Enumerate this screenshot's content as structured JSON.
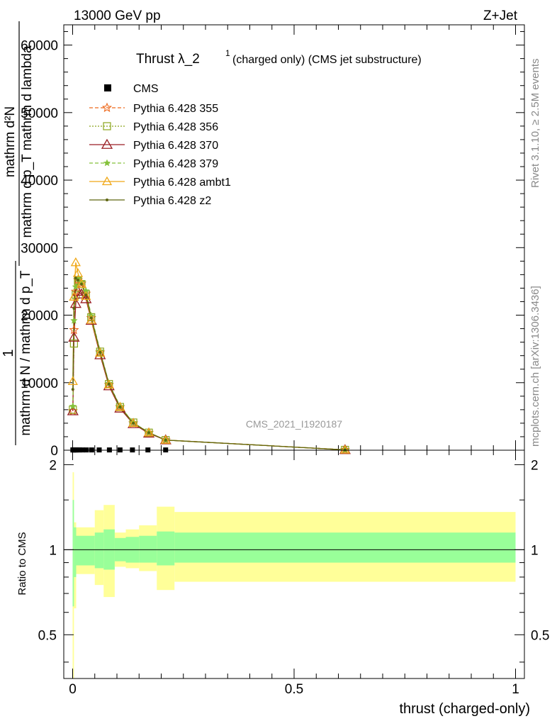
{
  "header": {
    "left": "13000 GeV pp",
    "right": "Z+Jet"
  },
  "side_labels": {
    "rivet": "Rivet 3.1.10, ≥ 2.5M events",
    "mcplots": "mcplots.cern.ch [arXiv:1306.3436]"
  },
  "colors": {
    "cms": "#000000",
    "p355": "#ee6a1e",
    "p356": "#8aa51c",
    "p370": "#9a1f24",
    "p379": "#84c13b",
    "ambt1": "#f0a818",
    "z2": "#5e6611",
    "band_inner": "#99ff99",
    "band_outer": "#ffff99"
  },
  "chart_data": [
    {
      "type": "line",
      "title": "Thrust λ_2¹ (charged only) (CMS jet substructure)",
      "title_main": "Thrust λ_2",
      "title_sup": "1",
      "title_rest": "(charged only) (CMS jet substructure)",
      "ylabel_numerator": "1",
      "ylabel_denominator": "mathrm d N / mathrm d p_T",
      "ylabel_fraction_num": "mathrm d²N",
      "ylabel_fraction_den": "mathrm d p_T mathrm d lambda",
      "watermark": "CMS_2021_I1920187",
      "xlim": [
        -0.02,
        1.02
      ],
      "ylim": [
        0,
        63000
      ],
      "yticks": [
        0,
        10000,
        20000,
        30000,
        40000,
        50000,
        60000
      ],
      "ytick_labels": [
        "0",
        "10000",
        "20000",
        "30000",
        "40000",
        "50000",
        "60000"
      ],
      "legend_position": "top-left",
      "cms": {
        "name": "CMS",
        "x": [
          0.0005,
          0.0015,
          0.003,
          0.005,
          0.0075,
          0.011,
          0.016,
          0.022,
          0.031,
          0.043,
          0.06,
          0.083,
          0.107,
          0.135,
          0.17,
          0.21
        ],
        "y": [
          40,
          40,
          40,
          40,
          40,
          40,
          40,
          40,
          40,
          40,
          40,
          40,
          40,
          40,
          40,
          40
        ]
      },
      "x": [
        0.0005,
        0.003,
        0.007,
        0.012,
        0.02,
        0.03,
        0.042,
        0.062,
        0.082,
        0.107,
        0.137,
        0.172,
        0.21,
        0.615
      ],
      "series": [
        {
          "name": "Pythia 6.428 355",
          "values": [
            5800,
            17800,
            23500,
            25200,
            24700,
            23200,
            19600,
            14500,
            9700,
            6400,
            4000,
            2600,
            1500,
            50
          ]
        },
        {
          "name": "Pythia 6.428 356",
          "values": [
            6000,
            15800,
            23000,
            25100,
            24600,
            23100,
            19700,
            14600,
            9800,
            6400,
            4100,
            2600,
            1500,
            50
          ]
        },
        {
          "name": "Pythia 6.428 370",
          "values": [
            5800,
            16700,
            21700,
            23500,
            23100,
            22400,
            19200,
            14100,
            9500,
            6200,
            3900,
            2500,
            1500,
            50
          ]
        },
        {
          "name": "Pythia 6.428 379",
          "values": [
            6500,
            19200,
            24200,
            25400,
            24900,
            23600,
            19900,
            14700,
            9900,
            6500,
            4100,
            2600,
            1500,
            50
          ]
        },
        {
          "name": "Pythia 6.428 ambt1",
          "values": [
            10200,
            22700,
            27800,
            26200,
            24600,
            22800,
            19300,
            14400,
            9700,
            6400,
            4000,
            2600,
            1500,
            50
          ]
        },
        {
          "name": "Pythia 6.428 z2",
          "values": [
            9000,
            21000,
            25500,
            25200,
            24600,
            23000,
            19600,
            14500,
            9800,
            6400,
            4000,
            2600,
            1500,
            50
          ]
        }
      ]
    },
    {
      "type": "area",
      "ylabel": "Ratio to CMS",
      "xlabel": "thrust (charged-only)",
      "xlim": [
        -0.02,
        1.02
      ],
      "ylim": [
        0.35,
        2.25
      ],
      "xticks": [
        0,
        0.5,
        1
      ],
      "xtick_labels": [
        "0",
        "0.5",
        "1"
      ],
      "yticks": [
        0.5,
        1,
        2
      ],
      "ytick_labels": [
        "0.5",
        "1",
        "2"
      ],
      "bands": [
        {
          "x0": 0.0,
          "x1": 0.003,
          "inner": [
            0.63,
            1.5
          ],
          "outer": [
            0.35,
            1.88
          ]
        },
        {
          "x0": 0.003,
          "x1": 0.008,
          "inner": [
            0.8,
            1.2
          ],
          "outer": [
            0.62,
            1.25
          ]
        },
        {
          "x0": 0.008,
          "x1": 0.05,
          "inner": [
            0.88,
            1.12
          ],
          "outer": [
            0.82,
            1.2
          ]
        },
        {
          "x0": 0.05,
          "x1": 0.07,
          "inner": [
            0.86,
            1.15
          ],
          "outer": [
            0.75,
            1.38
          ]
        },
        {
          "x0": 0.07,
          "x1": 0.095,
          "inner": [
            0.85,
            1.18
          ],
          "outer": [
            0.68,
            1.44
          ]
        },
        {
          "x0": 0.095,
          "x1": 0.12,
          "inner": [
            0.91,
            1.1
          ],
          "outer": [
            0.87,
            1.15
          ]
        },
        {
          "x0": 0.12,
          "x1": 0.15,
          "inner": [
            0.9,
            1.11
          ],
          "outer": [
            0.86,
            1.18
          ]
        },
        {
          "x0": 0.15,
          "x1": 0.19,
          "inner": [
            0.9,
            1.12
          ],
          "outer": [
            0.84,
            1.22
          ]
        },
        {
          "x0": 0.19,
          "x1": 0.23,
          "inner": [
            0.88,
            1.16
          ],
          "outer": [
            0.72,
            1.42
          ]
        },
        {
          "x0": 0.23,
          "x1": 1.0,
          "inner": [
            0.9,
            1.15
          ],
          "outer": [
            0.77,
            1.36
          ]
        }
      ]
    }
  ]
}
